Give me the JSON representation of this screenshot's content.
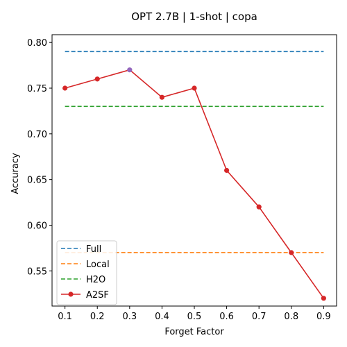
{
  "chart_data": {
    "type": "line",
    "title": "OPT 2.7B | 1-shot | copa",
    "xlabel": "Forget Factor",
    "ylabel": "Accuracy",
    "x": [
      0.1,
      0.2,
      0.3,
      0.4,
      0.5,
      0.6,
      0.7,
      0.8,
      0.9
    ],
    "xticks": [
      "0.1",
      "0.2",
      "0.3",
      "0.4",
      "0.5",
      "0.6",
      "0.7",
      "0.8",
      "0.9"
    ],
    "yticks": [
      "0.55",
      "0.60",
      "0.65",
      "0.70",
      "0.75",
      "0.80"
    ],
    "xlim": [
      0.06,
      0.94
    ],
    "ylim": [
      0.5115,
      0.8085
    ],
    "grid": false,
    "legend_position": "lower-left",
    "series": [
      {
        "name": "Full",
        "style": "dashed",
        "color": "#1f77b4",
        "values": [
          0.79,
          0.79,
          0.79,
          0.79,
          0.79,
          0.79,
          0.79,
          0.79,
          0.79
        ]
      },
      {
        "name": "Local",
        "style": "dashed",
        "color": "#ff7f0e",
        "values": [
          0.57,
          0.57,
          0.57,
          0.57,
          0.57,
          0.57,
          0.57,
          0.57,
          0.57
        ]
      },
      {
        "name": "H2O",
        "style": "dashed",
        "color": "#2ca02c",
        "values": [
          0.73,
          0.73,
          0.73,
          0.73,
          0.73,
          0.73,
          0.73,
          0.73,
          0.73
        ]
      },
      {
        "name": "A2SF",
        "style": "solid-markers",
        "color": "#d62728",
        "values": [
          0.75,
          0.76,
          0.77,
          0.74,
          0.75,
          0.66,
          0.62,
          0.57,
          0.52
        ]
      }
    ],
    "highlight_point": {
      "series": "A2SF",
      "x": 0.3,
      "color": "#9467bd"
    }
  }
}
